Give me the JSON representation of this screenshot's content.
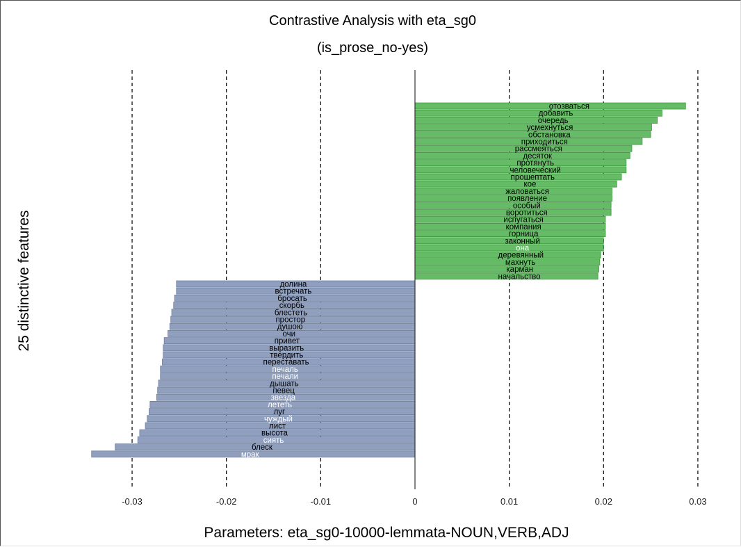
{
  "chart_data": {
    "type": "bar",
    "orientation": "horizontal",
    "title": "Contrastive Analysis with eta_sg0",
    "subtitle": "(is_prose_no-yes)",
    "xlabel": "Parameters: eta_sg0-10000-lemmata-NOUN,VERB,ADJ",
    "ylabel": "25 distinctive features",
    "xlim": [
      -0.0345,
      0.0303
    ],
    "xticks": [
      -0.03,
      -0.02,
      -0.01,
      0,
      0.01,
      0.02,
      0.03
    ],
    "xtick_labels": [
      "-0.03",
      "-0.02",
      "-0.01",
      "0",
      "0.01",
      "0.02",
      "0.03"
    ],
    "grid": "vertical dashed at ticks",
    "colors": {
      "positive": "#66bb66",
      "positive_edge": "#3f9a3f",
      "negative": "#8f9fbd",
      "negative_edge": "#6f7fa0"
    },
    "positive": {
      "labels": [
        "отозваться",
        "добавить",
        "очередь",
        "усмехнуться",
        "обстановка",
        "приходиться",
        "рассмеяться",
        "десяток",
        "протянуть",
        "человеческий",
        "прошептать",
        "кое",
        "жаловаться",
        "появление",
        "особый",
        "воротиться",
        "испугаться",
        "компания",
        "горница",
        "законный",
        "она",
        "деревянный",
        "махнуть",
        "карман",
        "начальство"
      ],
      "values": [
        0.0287,
        0.0262,
        0.0257,
        0.0251,
        0.025,
        0.0241,
        0.023,
        0.0228,
        0.0224,
        0.0224,
        0.0219,
        0.0214,
        0.0209,
        0.0209,
        0.0208,
        0.0208,
        0.0202,
        0.0202,
        0.0202,
        0.02,
        0.02,
        0.0197,
        0.0196,
        0.0195,
        0.0194
      ],
      "label_colors": [
        "black",
        "black",
        "black",
        "black",
        "black",
        "black",
        "black",
        "black",
        "black",
        "black",
        "black",
        "black",
        "black",
        "black",
        "black",
        "black",
        "black",
        "black",
        "black",
        "black",
        "white",
        "black",
        "black",
        "black",
        "black"
      ]
    },
    "negative": {
      "labels": [
        "долина",
        "встречать",
        "бросать",
        "скорбь",
        "блестеть",
        "простор",
        "душою",
        "очи",
        "привет",
        "выразить",
        "твердить",
        "переставать",
        "печаль",
        "печали",
        "дышать",
        "певец",
        "звезда",
        "лететь",
        "луг",
        "чуждый",
        "лист",
        "высота",
        "сиять",
        "блеск",
        "мрак"
      ],
      "values": [
        -0.0253,
        -0.0253,
        -0.0255,
        -0.0256,
        -0.0258,
        -0.0259,
        -0.026,
        -0.0262,
        -0.0266,
        -0.0267,
        -0.0267,
        -0.0268,
        -0.027,
        -0.027,
        -0.0272,
        -0.0273,
        -0.0274,
        -0.0281,
        -0.0282,
        -0.0284,
        -0.0286,
        -0.0292,
        -0.0294,
        -0.0318,
        -0.0343
      ],
      "label_colors": [
        "black",
        "black",
        "black",
        "black",
        "black",
        "black",
        "black",
        "black",
        "black",
        "black",
        "black",
        "black",
        "white",
        "white",
        "black",
        "black",
        "white",
        "white",
        "black",
        "white",
        "black",
        "black",
        "white",
        "black",
        "white"
      ]
    }
  }
}
